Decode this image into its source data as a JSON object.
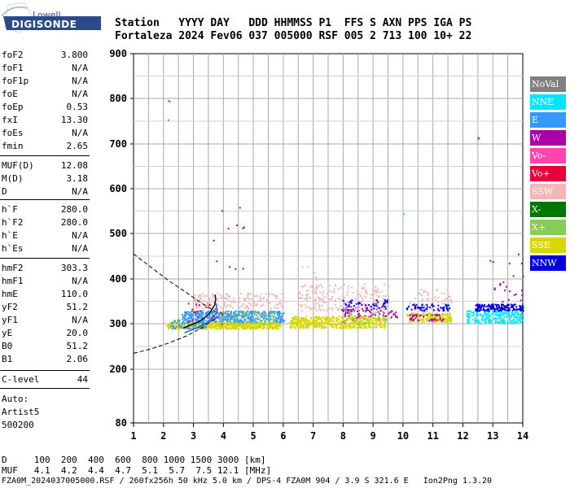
{
  "logo": {
    "brand_top": "Lowell",
    "brand_main": "DIGISONDE"
  },
  "header": {
    "line1": "Station   YYYY DAY   DDD HHMMSS P1  FFS S AXN PPS IGA PS",
    "line2": "Fortaleza 2024 Fev06 037 005000 RSF 005 2 713 100 10+ 22"
  },
  "params": {
    "group1": [
      {
        "name": "foF2",
        "value": "3.800"
      },
      {
        "name": "foF1",
        "value": "N/A"
      },
      {
        "name": "foF1p",
        "value": "N/A"
      },
      {
        "name": "foE",
        "value": "N/A"
      },
      {
        "name": "foEp",
        "value": "0.53"
      },
      {
        "name": "fxI",
        "value": "13.30"
      },
      {
        "name": "foEs",
        "value": "N/A"
      },
      {
        "name": "fmin",
        "value": "2.65"
      }
    ],
    "group2": [
      {
        "name": "MUF(D)",
        "value": "12.08"
      },
      {
        "name": "M(D)",
        "value": "3.18"
      },
      {
        "name": "D",
        "value": "N/A"
      }
    ],
    "group3": [
      {
        "name": "h`F",
        "value": "280.0"
      },
      {
        "name": "h`F2",
        "value": "280.0"
      },
      {
        "name": "h`E",
        "value": "N/A"
      },
      {
        "name": "h`Es",
        "value": "N/A"
      }
    ],
    "group4": [
      {
        "name": "hmF2",
        "value": "303.3"
      },
      {
        "name": "hmF1",
        "value": "N/A"
      },
      {
        "name": "hmE",
        "value": "110.0"
      },
      {
        "name": "yF2",
        "value": "51.2"
      },
      {
        "name": "yF1",
        "value": "N/A"
      },
      {
        "name": "yE",
        "value": "20.0"
      },
      {
        "name": "B0",
        "value": "51.2"
      },
      {
        "name": "B1",
        "value": "2.06"
      }
    ],
    "clevel": {
      "name": "C-level",
      "value": "44"
    },
    "auto_lines": [
      "Auto:",
      "Artist5",
      "500200"
    ]
  },
  "legend": [
    {
      "label": "NoVal",
      "color": "#808080",
      "text_color": "#ffffff"
    },
    {
      "label": "NNE",
      "color": "#00e5ff",
      "text_color": "#ffffff"
    },
    {
      "label": "E",
      "color": "#3399ff",
      "text_color": "#ffffff"
    },
    {
      "label": "W",
      "color": "#aa00aa",
      "text_color": "#ffffff"
    },
    {
      "label": "Vo-",
      "color": "#ff44aa",
      "text_color": "#ffffff"
    },
    {
      "label": "Vo+",
      "color": "#e8003a",
      "text_color": "#ffffff"
    },
    {
      "label": "SSW",
      "color": "#f4b6b6",
      "text_color": "#ffffff"
    },
    {
      "label": "X-",
      "color": "#007700",
      "text_color": "#ffffff"
    },
    {
      "label": "X+",
      "color": "#88cc55",
      "text_color": "#ffffff"
    },
    {
      "label": "SSE",
      "color": "#d8d800",
      "text_color": "#ffffff"
    },
    {
      "label": "NNW",
      "color": "#0000dd",
      "text_color": "#ffffff"
    }
  ],
  "chart_data": {
    "type": "scatter",
    "x_ticks": [
      1,
      2,
      3,
      4,
      5,
      6,
      7,
      8,
      9,
      10,
      11,
      12,
      13,
      14
    ],
    "y_ticks": [
      80,
      200,
      300,
      400,
      500,
      600,
      700,
      800,
      900
    ],
    "xlim": [
      1,
      14
    ],
    "ylim": [
      80,
      900
    ],
    "grid": true
  },
  "footer": {
    "line1": "D     100  200  400  600  800 1000 1500 3000 [km]",
    "line2": "MUF   4.1  4.2  4.4  4.7  5.1  5.7  7.5 12.1 [MHz]",
    "line3": "FZA0M_2024037005000.RSF / 260fx256h 50 kHz 5.0 km / DPS-4 FZA0M 904 / 3.9 S 321.6 E   Ion2Png 1.3.20"
  }
}
